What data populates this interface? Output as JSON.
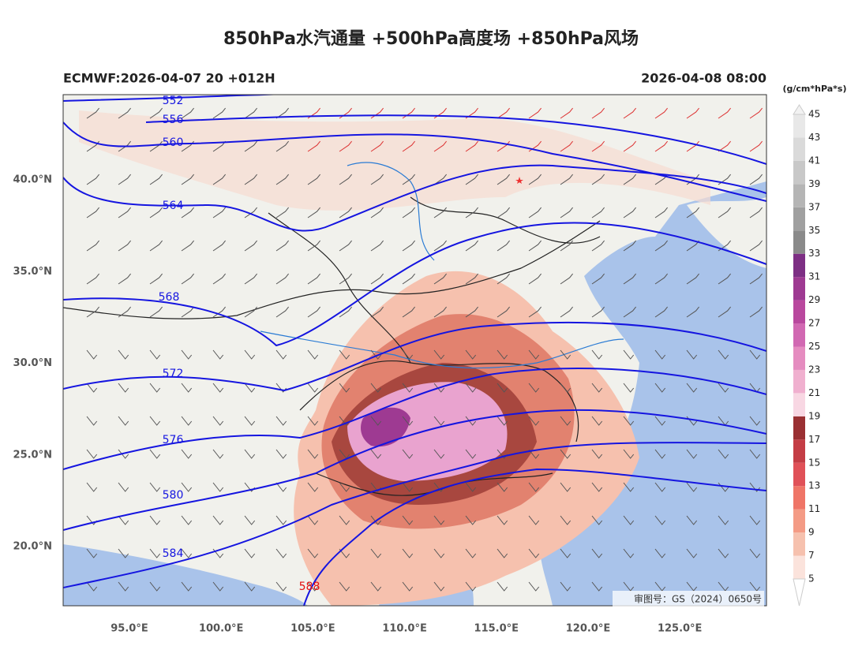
{
  "header": {
    "title": "850hPa水汽通量 +500hPa高度场 +850hPa风场",
    "left": "ECMWF:2026-04-07 20 +012H",
    "right": "2026-04-08 08:00"
  },
  "colorbar": {
    "unit": "(g/cm*hPa*s)",
    "levels": [
      5,
      7,
      9,
      11,
      13,
      15,
      17,
      19,
      21,
      23,
      25,
      27,
      29,
      31,
      33,
      35,
      37,
      39,
      41,
      43,
      45
    ],
    "colors": [
      "#fbe3dc",
      "#f6c1ae",
      "#f49b85",
      "#ef7567",
      "#e05158",
      "#c43d45",
      "#9a3033",
      "#f8d7e3",
      "#f0b0cf",
      "#e58cc0",
      "#d168b2",
      "#b9489e",
      "#9e3a92",
      "#7d2f84",
      "#8a8a8a",
      "#a0a0a0",
      "#b5b5b5",
      "#c8c8c8",
      "#dadada",
      "#e8e8e8"
    ]
  },
  "axes": {
    "x_labels": [
      "95.0°E",
      "100.0°E",
      "105.0°E",
      "110.0°E",
      "115.0°E",
      "120.0°E",
      "125.0°E"
    ],
    "y_labels": [
      "40.0°N",
      "35.0°N",
      "30.0°N",
      "25.0°N",
      "20.0°N"
    ]
  },
  "contours": [
    "552",
    "556",
    "560",
    "564",
    "568",
    "572",
    "576",
    "580",
    "584",
    "588"
  ],
  "watermark": "审图号：GS（2024）0650号"
}
